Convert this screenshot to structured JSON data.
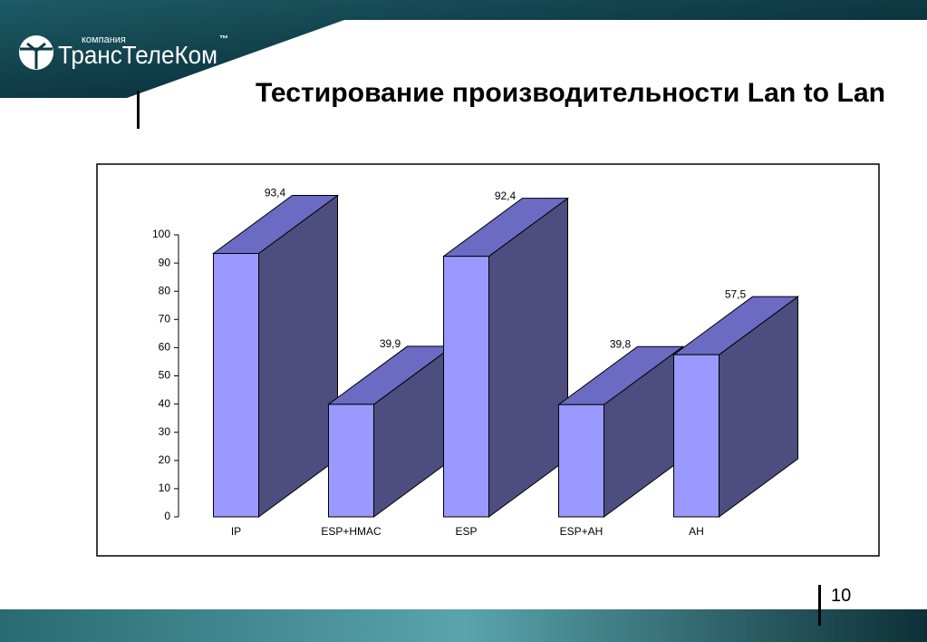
{
  "logo": {
    "small": "компания",
    "name": "ТрансТелеКом",
    "tm": "™"
  },
  "page_number": 10,
  "chart_data": {
    "type": "bar3d",
    "title": "Тестирование производительности Lan to Lan",
    "categories": [
      "IP",
      "ESP+HMAC",
      "ESP",
      "ESP+AH",
      "AH"
    ],
    "values": [
      93.4,
      39.9,
      92.4,
      39.8,
      57.5
    ],
    "value_labels": [
      "93,4",
      "39,9",
      "92,4",
      "39,8",
      "57,5"
    ],
    "color": "#9999ff",
    "ylim": [
      0,
      100
    ],
    "yticks": [
      0,
      10,
      20,
      30,
      40,
      50,
      60,
      70,
      80,
      90,
      100
    ]
  }
}
